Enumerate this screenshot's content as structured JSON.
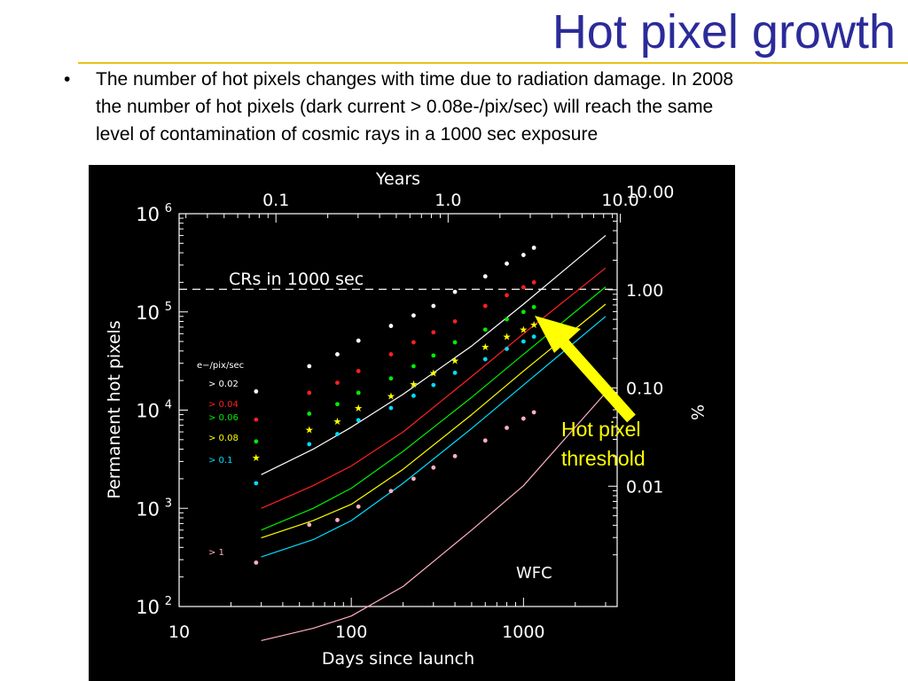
{
  "slide": {
    "title": "Hot pixel growth",
    "bullet_marker": "•",
    "bullet_lines": [
      "The number of hot pixels changes with time due to radiation damage. In 2008",
      "the number of hot pixels (dark current > 0.08e-/pix/sec) will reach the same",
      "level of contamination of cosmic rays in a 1000 sec exposure"
    ],
    "annotation_lines": [
      "Hot pixel",
      "threshold"
    ],
    "colors": {
      "title": "#2b2b9a",
      "rule": "#e8c21a",
      "annotation": "#ffff00",
      "arrow": "#ffff00"
    }
  },
  "chart_data": {
    "type": "scatter",
    "xlabel": "Days since launch",
    "x2label": "Years",
    "ylabel": "Permanent hot pixels",
    "y2label": "%",
    "x_scale": "log",
    "y_scale": "log",
    "xlim": [
      10,
      3500
    ],
    "ylim": [
      100,
      1000000
    ],
    "x_ticks": [
      {
        "v": 10,
        "label": "10"
      },
      {
        "v": 100,
        "label": "100"
      },
      {
        "v": 1000,
        "label": "1000"
      }
    ],
    "x2_ticks": [
      {
        "v": 36.5,
        "label": "0.1"
      },
      {
        "v": 365,
        "label": "1.0"
      },
      {
        "v": 3650,
        "label": "10.0"
      }
    ],
    "y_ticks": [
      {
        "v": 100,
        "base": "10",
        "exp": "2"
      },
      {
        "v": 1000,
        "base": "10",
        "exp": "3"
      },
      {
        "v": 10000,
        "base": "10",
        "exp": "4"
      },
      {
        "v": 100000,
        "base": "10",
        "exp": "5"
      },
      {
        "v": 1000000,
        "base": "10",
        "exp": "6"
      }
    ],
    "y2_ticks": [
      {
        "v": 1680000,
        "label": "10.00"
      },
      {
        "v": 168000,
        "label": "1.00"
      },
      {
        "v": 16800,
        "label": "0.10"
      },
      {
        "v": 1680,
        "label": "0.01"
      }
    ],
    "reference_line": {
      "y": 170000,
      "label": "CRs in 1000 sec",
      "style": "dashed",
      "color": "#ffffff"
    },
    "instrument_label": "WFC",
    "legend_title": "e−/pix/sec",
    "legend_placement": "left",
    "series": [
      {
        "name": "> 0.02",
        "color": "#ffffff",
        "marker": "dot",
        "fit": [
          [
            30,
            2200
          ],
          [
            60,
            4000
          ],
          [
            100,
            6700
          ],
          [
            200,
            14500
          ],
          [
            500,
            45000
          ],
          [
            1000,
            120000
          ],
          [
            3000,
            600000
          ]
        ],
        "points": [
          [
            28,
            15500
          ],
          [
            57,
            28000
          ],
          [
            83,
            37000
          ],
          [
            110,
            51000
          ],
          [
            170,
            72000
          ],
          [
            230,
            92000
          ],
          [
            300,
            115000
          ],
          [
            400,
            160000
          ],
          [
            600,
            230000
          ],
          [
            800,
            310000
          ],
          [
            1000,
            380000
          ],
          [
            1150,
            450000
          ]
        ]
      },
      {
        "name": "> 0.04",
        "color": "#ff2020",
        "marker": "dot",
        "fit": [
          [
            30,
            1000
          ],
          [
            60,
            1700
          ],
          [
            100,
            2700
          ],
          [
            200,
            6000
          ],
          [
            500,
            22000
          ],
          [
            1000,
            60000
          ],
          [
            3000,
            280000
          ]
        ],
        "points": [
          [
            28,
            8000
          ],
          [
            57,
            15000
          ],
          [
            83,
            19000
          ],
          [
            110,
            25000
          ],
          [
            170,
            37000
          ],
          [
            230,
            49000
          ],
          [
            300,
            62000
          ],
          [
            400,
            80000
          ],
          [
            600,
            115000
          ],
          [
            800,
            148000
          ],
          [
            1000,
            178000
          ],
          [
            1150,
            200000
          ]
        ]
      },
      {
        "name": "> 0.06",
        "color": "#00ee00",
        "marker": "dot",
        "fit": [
          [
            30,
            600
          ],
          [
            60,
            1000
          ],
          [
            100,
            1600
          ],
          [
            200,
            3800
          ],
          [
            500,
            13500
          ],
          [
            1000,
            37000
          ],
          [
            3000,
            180000
          ]
        ],
        "points": [
          [
            28,
            4800
          ],
          [
            57,
            9200
          ],
          [
            83,
            11500
          ],
          [
            110,
            15000
          ],
          [
            170,
            21000
          ],
          [
            230,
            28000
          ],
          [
            300,
            36000
          ],
          [
            400,
            49000
          ],
          [
            600,
            66000
          ],
          [
            800,
            84000
          ],
          [
            1000,
            100000
          ],
          [
            1150,
            112000
          ]
        ]
      },
      {
        "name": "> 0.08",
        "color": "#ffff00",
        "marker": "star",
        "fit": [
          [
            30,
            500
          ],
          [
            60,
            750
          ],
          [
            100,
            1100
          ],
          [
            200,
            2500
          ],
          [
            500,
            9000
          ],
          [
            1000,
            25000
          ],
          [
            3000,
            120000
          ]
        ],
        "points": [
          [
            28,
            3300
          ],
          [
            57,
            6300
          ],
          [
            83,
            7700
          ],
          [
            110,
            10500
          ],
          [
            170,
            14000
          ],
          [
            230,
            18500
          ],
          [
            300,
            24000
          ],
          [
            400,
            32000
          ],
          [
            600,
            44000
          ],
          [
            800,
            56000
          ],
          [
            1000,
            66000
          ],
          [
            1150,
            74000
          ]
        ]
      },
      {
        "name": "> 0.1",
        "color": "#00ddff",
        "marker": "dot",
        "fit": [
          [
            30,
            320
          ],
          [
            60,
            480
          ],
          [
            100,
            750
          ],
          [
            200,
            1800
          ],
          [
            500,
            6500
          ],
          [
            1000,
            18000
          ],
          [
            3000,
            90000
          ]
        ],
        "points": [
          [
            28,
            1800
          ],
          [
            57,
            4500
          ],
          [
            83,
            5700
          ],
          [
            110,
            7900
          ],
          [
            170,
            10500
          ],
          [
            230,
            14000
          ],
          [
            300,
            18000
          ],
          [
            400,
            24000
          ],
          [
            600,
            33000
          ],
          [
            800,
            42000
          ],
          [
            1000,
            50000
          ],
          [
            1150,
            56000
          ]
        ]
      },
      {
        "name": "> 1",
        "color": "#ffb0c0",
        "marker": "dot",
        "fit": [
          [
            30,
            45
          ],
          [
            60,
            60
          ],
          [
            100,
            80
          ],
          [
            200,
            160
          ],
          [
            500,
            600
          ],
          [
            1000,
            1700
          ],
          [
            3000,
            15000
          ]
        ],
        "points": [
          [
            28,
            280
          ],
          [
            57,
            680
          ],
          [
            83,
            760
          ],
          [
            110,
            1040
          ],
          [
            170,
            1500
          ],
          [
            230,
            2000
          ],
          [
            300,
            2600
          ],
          [
            400,
            3400
          ],
          [
            600,
            4900
          ],
          [
            800,
            6600
          ],
          [
            1000,
            8200
          ],
          [
            1150,
            9500
          ]
        ]
      }
    ]
  }
}
